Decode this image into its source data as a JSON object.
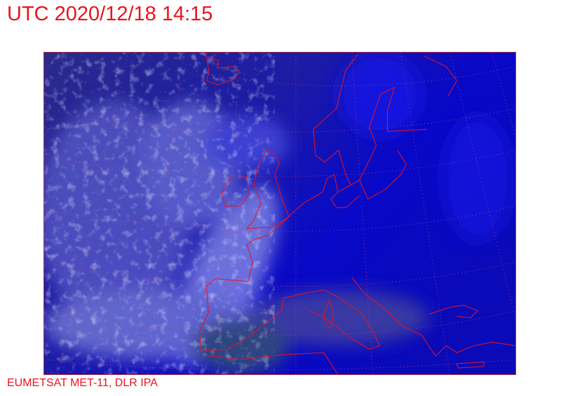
{
  "header": {
    "title": "UTC 2020/12/18 14:15"
  },
  "footer": {
    "credit": "EUMETSAT MET-11, DLR IPA"
  },
  "map": {
    "type": "satellite-composite",
    "region": "Europe and North Atlantic",
    "overlay_color": "#e8141e",
    "grid": "dotted lat/lon graticule",
    "colors": {
      "ocean_clear": "#0a0ad0",
      "cloud": "#b8bcf0",
      "land": "#3a5a6a"
    }
  }
}
